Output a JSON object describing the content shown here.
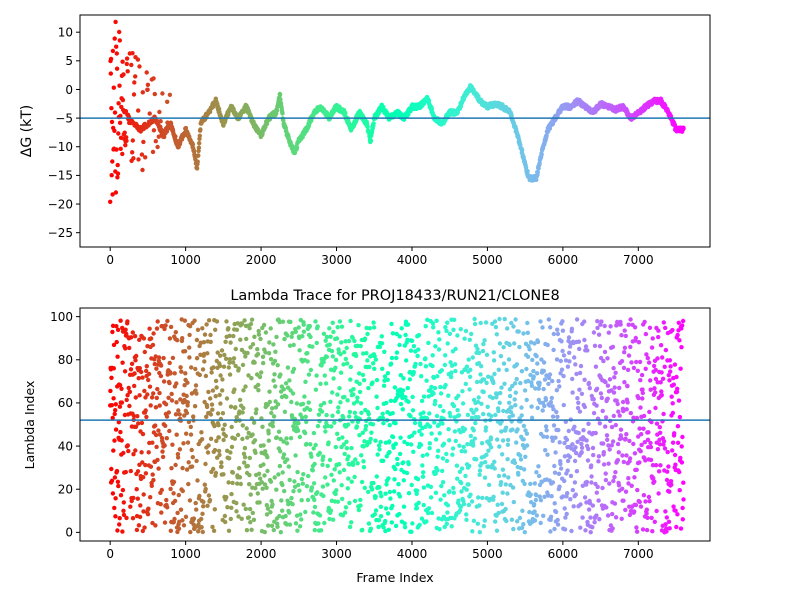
{
  "figure": {
    "background": "#ffffff",
    "hline_color": "#1f77b4"
  },
  "chart_data": [
    {
      "type": "scatter",
      "title": "",
      "xlabel": "",
      "ylabel": "ΔG (kT)",
      "xlim": [
        -400,
        7950
      ],
      "ylim": [
        -27.5,
        13
      ],
      "xticks": [
        0,
        1000,
        2000,
        3000,
        4000,
        5000,
        6000,
        7000
      ],
      "yticks": [
        -25,
        -20,
        -15,
        -10,
        -5,
        0,
        5,
        10
      ],
      "hline": -5,
      "grid": false,
      "legend": "none",
      "colormap": "rainbow (red at frame 0 to violet at frame 7600)",
      "x_range": [
        0,
        7600
      ],
      "trace_keypoints": [
        [
          100,
          -2
        ],
        [
          200,
          -4
        ],
        [
          300,
          -6
        ],
        [
          400,
          -7
        ],
        [
          500,
          -6
        ],
        [
          600,
          -5
        ],
        [
          700,
          -8
        ],
        [
          800,
          -6
        ],
        [
          900,
          -10
        ],
        [
          1000,
          -7
        ],
        [
          1100,
          -10
        ],
        [
          1150,
          -14
        ],
        [
          1200,
          -6
        ],
        [
          1300,
          -4
        ],
        [
          1400,
          -2
        ],
        [
          1500,
          -6
        ],
        [
          1600,
          -3
        ],
        [
          1700,
          -5
        ],
        [
          1800,
          -3
        ],
        [
          1900,
          -6
        ],
        [
          2000,
          -8
        ],
        [
          2100,
          -5
        ],
        [
          2200,
          -4
        ],
        [
          2250,
          -1
        ],
        [
          2300,
          -6
        ],
        [
          2400,
          -10
        ],
        [
          2450,
          -11
        ],
        [
          2500,
          -9
        ],
        [
          2600,
          -7
        ],
        [
          2700,
          -4
        ],
        [
          2800,
          -3
        ],
        [
          2900,
          -5
        ],
        [
          3000,
          -3
        ],
        [
          3100,
          -4
        ],
        [
          3200,
          -7
        ],
        [
          3300,
          -4
        ],
        [
          3400,
          -6
        ],
        [
          3450,
          -9
        ],
        [
          3500,
          -5
        ],
        [
          3600,
          -3
        ],
        [
          3700,
          -5
        ],
        [
          3800,
          -4
        ],
        [
          3900,
          -5
        ],
        [
          4000,
          -3
        ],
        [
          4100,
          -3
        ],
        [
          4200,
          -1.5
        ],
        [
          4300,
          -5
        ],
        [
          4400,
          -6
        ],
        [
          4500,
          -4
        ],
        [
          4600,
          -4
        ],
        [
          4700,
          -1
        ],
        [
          4780,
          0.5
        ],
        [
          4900,
          -2
        ],
        [
          5000,
          -3
        ],
        [
          5100,
          -2.5
        ],
        [
          5200,
          -3
        ],
        [
          5300,
          -4
        ],
        [
          5400,
          -8
        ],
        [
          5500,
          -13
        ],
        [
          5550,
          -15.5
        ],
        [
          5650,
          -15.5
        ],
        [
          5700,
          -12
        ],
        [
          5800,
          -7
        ],
        [
          5900,
          -5
        ],
        [
          6000,
          -3
        ],
        [
          6100,
          -3
        ],
        [
          6200,
          -2
        ],
        [
          6300,
          -3
        ],
        [
          6400,
          -4
        ],
        [
          6500,
          -2.5
        ],
        [
          6600,
          -3
        ],
        [
          6700,
          -3.5
        ],
        [
          6800,
          -3
        ],
        [
          6900,
          -5
        ],
        [
          7000,
          -4
        ],
        [
          7100,
          -3
        ],
        [
          7200,
          -2
        ],
        [
          7300,
          -2
        ],
        [
          7400,
          -4
        ],
        [
          7500,
          -7
        ],
        [
          7600,
          -7
        ]
      ],
      "early_scatter_envelope": [
        [
          0,
          -25,
          10
        ],
        [
          100,
          -16,
          13
        ],
        [
          200,
          -12,
          8
        ],
        [
          400,
          -15,
          5
        ],
        [
          600,
          -11,
          3
        ],
        [
          800,
          -10,
          0
        ]
      ]
    },
    {
      "type": "scatter",
      "title": "Lambda Trace for PROJ18433/RUN21/CLONE8",
      "xlabel": "Frame Index",
      "ylabel": "Lambda Index",
      "xlim": [
        -400,
        7950
      ],
      "ylim": [
        -4,
        104
      ],
      "xticks": [
        0,
        1000,
        2000,
        3000,
        4000,
        5000,
        6000,
        7000
      ],
      "yticks": [
        0,
        20,
        40,
        60,
        80,
        100
      ],
      "hline": 52,
      "grid": false,
      "legend": "none",
      "colormap": "rainbow (red at frame 0 to violet at frame 7600)",
      "x_range": [
        0,
        7600
      ],
      "y_range": [
        0,
        99
      ],
      "visible_gap_frames": [
        5530,
        5650
      ]
    }
  ]
}
